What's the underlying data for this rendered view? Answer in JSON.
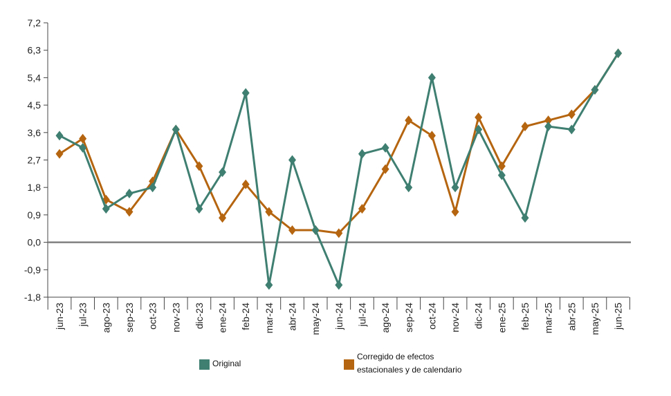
{
  "chart_data": {
    "type": "line",
    "categories": [
      "jun-23",
      "jul-23",
      "ago-23",
      "sep-23",
      "oct-23",
      "nov-23",
      "dic-23",
      "ene-24",
      "feb-24",
      "mar-24",
      "abr-24",
      "may-24",
      "jun-24",
      "jul-24",
      "ago-24",
      "sep-24",
      "oct-24",
      "nov-24",
      "dic-24",
      "ene-25",
      "feb-25",
      "mar-25",
      "abr-25",
      "may-25",
      "jun-25"
    ],
    "series": [
      {
        "name": "Original",
        "color": "#3f7f72",
        "marker": "diamond",
        "values": [
          3.5,
          3.1,
          1.1,
          1.6,
          1.8,
          3.7,
          1.1,
          2.3,
          4.9,
          -1.4,
          2.7,
          0.4,
          -1.4,
          2.9,
          3.1,
          1.8,
          5.4,
          1.8,
          3.7,
          2.2,
          0.8,
          3.8,
          3.7,
          5.0,
          6.2
        ]
      },
      {
        "name": "Corregido de efectos estacionales y de calendario",
        "color": "#b5650f",
        "marker": "diamond",
        "values": [
          2.9,
          3.4,
          1.4,
          1.0,
          2.0,
          3.7,
          2.5,
          0.8,
          1.9,
          1.0,
          0.4,
          0.4,
          0.3,
          1.1,
          2.4,
          4.0,
          3.5,
          1.0,
          4.1,
          2.5,
          3.8,
          4.0,
          4.2,
          5.0,
          6.2
        ]
      }
    ],
    "yticks": [
      "7,2",
      "6,3",
      "5,4",
      "4,5",
      "3,6",
      "2,7",
      "1,8",
      "0,9",
      "0,0",
      "-0,9",
      "-1,8"
    ],
    "ylim": [
      -1.8,
      7.2
    ],
    "title": "",
    "xlabel": "",
    "ylabel": "",
    "zero_line_color": "#808080",
    "grid": false,
    "legend_position": "bottom"
  },
  "legend": {
    "original_label": "Original",
    "adjusted_label_line1": "Corregido de efectos",
    "adjusted_label_line2": "estacionales y de calendario"
  }
}
